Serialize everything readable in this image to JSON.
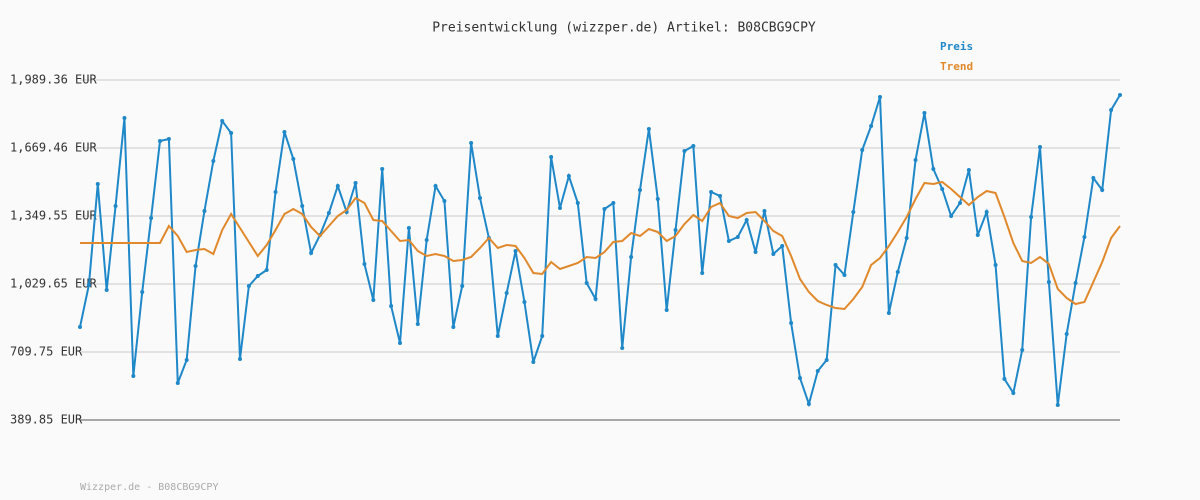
{
  "chart_data": {
    "type": "line",
    "title": "Preisentwicklung (wizzper.de) Artikel: B08CBG9CPY",
    "footer": "Wizzper.de - B08CBG9CPY",
    "ylim": [
      389.85,
      1989.36
    ],
    "yticks": [
      {
        "value": 389.85,
        "label": "389.85 EUR"
      },
      {
        "value": 709.75,
        "label": "709.75 EUR"
      },
      {
        "value": 1029.65,
        "label": "1,029.65 EUR"
      },
      {
        "value": 1349.55,
        "label": "1,349.55 EUR"
      },
      {
        "value": 1669.46,
        "label": "1,669.46 EUR"
      },
      {
        "value": 1989.36,
        "label": "1,989.36 EUR"
      }
    ],
    "grid": true,
    "legend": "top-right",
    "series": [
      {
        "name": "Preis",
        "color": "#1f88c8",
        "markers": true,
        "values": [
          827.4,
          1024.9,
          1500.1,
          1001.4,
          1396.6,
          1810.6,
          596.8,
          992.0,
          1340.1,
          1702.4,
          1711.8,
          563.9,
          672.1,
          1114.3,
          1373.1,
          1608.3,
          1796.5,
          1740.0,
          676.8,
          1020.2,
          1067.3,
          1095.5,
          1462.4,
          1744.8,
          1617.7,
          1396.6,
          1175.5,
          1260.2,
          1363.7,
          1490.7,
          1368.4,
          1504.8,
          1123.7,
          954.4,
          1570.6,
          926.1,
          752.1,
          1293.1,
          841.5,
          1236.6,
          1490.7,
          1420.1,
          827.4,
          1020.2,
          1693.0,
          1434.2,
          1246.0,
          785.0,
          987.3,
          1184.9,
          945.0,
          662.7,
          785.0,
          1627.1,
          1387.2,
          1537.7,
          1410.7,
          1034.3,
          959.1,
          1382.5,
          1410.7,
          728.6,
          1156.7,
          1471.9,
          1758.8,
          1429.5,
          907.3,
          1283.7,
          1655.3,
          1678.9,
          1081.4,
          1462.4,
          1443.6,
          1231.9,
          1250.8,
          1330.7,
          1180.2,
          1373.1,
          1170.8,
          1208.4,
          846.2,
          587.4,
          465.1,
          620.4,
          672.1,
          1119.0,
          1072.0,
          1368.4,
          1660.0,
          1772.9,
          1909.3,
          893.2,
          1086.1,
          1246.0,
          1613.0,
          1834.1,
          1570.6,
          1476.6,
          1349.5,
          1410.7,
          1566.0,
          1260.2,
          1368.4,
          1119.0,
          582.7,
          516.9,
          719.2,
          1344.8,
          1674.1,
          1039.1,
          460.4,
          794.4,
          1034.3,
          1250.8,
          1528.3,
          1471.9,
          1848.2,
          1918.8
        ]
      },
      {
        "name": "Trend",
        "color": "#e0892c",
        "markers": false,
        "values": [
          1222.5,
          1222.5,
          1222.5,
          1222.5,
          1222.5,
          1222.5,
          1222.5,
          1222.5,
          1222.5,
          1222.5,
          1302.5,
          1255.5,
          1180.2,
          1189.6,
          1194.3,
          1170.8,
          1283.7,
          1358.9,
          1293.1,
          1227.2,
          1161.4,
          1213.1,
          1283.7,
          1358.9,
          1382.5,
          1358.9,
          1297.8,
          1255.5,
          1302.5,
          1349.5,
          1377.8,
          1434.2,
          1410.7,
          1330.7,
          1326.0,
          1279.0,
          1231.9,
          1236.6,
          1184.9,
          1161.4,
          1170.8,
          1161.4,
          1137.9,
          1142.6,
          1156.7,
          1199.0,
          1246.0,
          1199.0,
          1213.1,
          1208.4,
          1152.0,
          1081.4,
          1076.7,
          1133.2,
          1100.2,
          1114.3,
          1128.5,
          1156.7,
          1152.0,
          1180.2,
          1227.2,
          1231.9,
          1269.6,
          1255.5,
          1288.4,
          1274.3,
          1231.9,
          1255.5,
          1311.9,
          1354.3,
          1326.0,
          1391.9,
          1410.7,
          1349.5,
          1340.1,
          1363.7,
          1368.4,
          1326.0,
          1279.0,
          1255.5,
          1161.4,
          1053.2,
          992.0,
          949.7,
          930.9,
          916.7,
          912.0,
          959.1,
          1015.6,
          1119.0,
          1152.0,
          1208.4,
          1274.3,
          1344.8,
          1429.5,
          1504.8,
          1500.1,
          1509.5,
          1476.6,
          1438.9,
          1401.3,
          1438.9,
          1467.2,
          1457.7,
          1344.8,
          1222.5,
          1137.9,
          1128.5,
          1156.7,
          1123.7,
          1006.1,
          963.8,
          935.6,
          945.0,
          1039.1,
          1133.2,
          1246.0,
          1302.5
        ]
      }
    ]
  }
}
